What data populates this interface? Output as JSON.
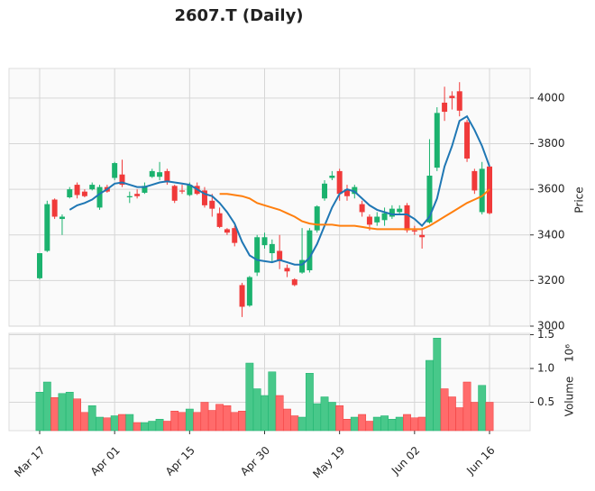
{
  "chart_data": {
    "type": "candlestick",
    "title": "2607.T (Daily)",
    "categories": [
      "Mar 17",
      null,
      null,
      null,
      null,
      null,
      null,
      null,
      null,
      null,
      "Apr 01",
      null,
      null,
      null,
      null,
      null,
      null,
      null,
      null,
      null,
      "Apr 15",
      null,
      null,
      null,
      null,
      null,
      null,
      null,
      null,
      null,
      "Apr 30",
      null,
      null,
      null,
      null,
      null,
      null,
      null,
      null,
      null,
      "May 19",
      null,
      null,
      null,
      null,
      null,
      null,
      null,
      null,
      null,
      "Jun 02",
      null,
      null,
      null,
      null,
      null,
      null,
      null,
      null,
      null,
      "Jun 16"
    ],
    "open": [
      3210,
      3330,
      3555,
      3470,
      3565,
      3620,
      3590,
      3600,
      3520,
      3610,
      3650,
      3665,
      3565,
      3580,
      3585,
      3655,
      3655,
      3680,
      3615,
      3595,
      3575,
      3615,
      3595,
      3550,
      3495,
      3425,
      3430,
      3180,
      3090,
      3235,
      3355,
      3320,
      3330,
      3255,
      3205,
      3235,
      3245,
      3420,
      3560,
      3650,
      3680,
      3600,
      3580,
      3535,
      3480,
      3455,
      3465,
      3480,
      3500,
      3530,
      3420,
      3400,
      3455,
      3695,
      3980,
      4010,
      4030,
      3895,
      3680,
      3500,
      3700
    ],
    "high": [
      3320,
      3550,
      3560,
      3490,
      3610,
      3630,
      3600,
      3630,
      3620,
      3620,
      3720,
      3730,
      3590,
      3600,
      3630,
      3690,
      3720,
      3690,
      3620,
      3620,
      3630,
      3630,
      3610,
      3580,
      3520,
      3430,
      3440,
      3190,
      3220,
      3400,
      3410,
      3380,
      3400,
      3270,
      3210,
      3430,
      3430,
      3530,
      3640,
      3680,
      3690,
      3620,
      3620,
      3550,
      3490,
      3500,
      3520,
      3530,
      3530,
      3540,
      3440,
      3430,
      3820,
      3960,
      4050,
      4030,
      4070,
      3905,
      3690,
      3720,
      3705
    ],
    "low": [
      3205,
      3325,
      3470,
      3400,
      3560,
      3560,
      3565,
      3595,
      3510,
      3585,
      3640,
      3610,
      3540,
      3560,
      3580,
      3650,
      3640,
      3620,
      3540,
      3580,
      3570,
      3575,
      3520,
      3480,
      3430,
      3400,
      3350,
      3040,
      3085,
      3220,
      3340,
      3280,
      3250,
      3215,
      3175,
      3230,
      3235,
      3410,
      3550,
      3640,
      3550,
      3550,
      3560,
      3480,
      3420,
      3440,
      3440,
      3470,
      3490,
      3410,
      3400,
      3340,
      3450,
      3680,
      3900,
      3950,
      3920,
      3720,
      3580,
      3490,
      3490
    ],
    "close": [
      3320,
      3535,
      3480,
      3480,
      3600,
      3575,
      3570,
      3620,
      3610,
      3590,
      3715,
      3620,
      3570,
      3570,
      3615,
      3680,
      3675,
      3630,
      3550,
      3590,
      3620,
      3580,
      3530,
      3515,
      3435,
      3410,
      3365,
      3085,
      3215,
      3390,
      3390,
      3360,
      3285,
      3240,
      3180,
      3290,
      3420,
      3525,
      3625,
      3660,
      3580,
      3570,
      3610,
      3500,
      3445,
      3480,
      3495,
      3515,
      3515,
      3420,
      3415,
      3390,
      3660,
      3935,
      3940,
      4000,
      3945,
      3735,
      3595,
      3690,
      3495
    ],
    "up_color": "#1bb26e",
    "down_color": "#f03a3a",
    "moving_averages": [
      {
        "color": "#1f77b4",
        "values": [
          null,
          null,
          null,
          null,
          3510,
          3530,
          3540,
          3555,
          3580,
          3600,
          3625,
          3630,
          3620,
          3610,
          3610,
          3620,
          3630,
          3635,
          3630,
          3625,
          3620,
          3600,
          3580,
          3570,
          3540,
          3500,
          3450,
          3370,
          3310,
          3290,
          3285,
          3280,
          3290,
          3280,
          3270,
          3270,
          3300,
          3360,
          3440,
          3520,
          3580,
          3600,
          3590,
          3560,
          3530,
          3510,
          3500,
          3490,
          3490,
          3490,
          3470,
          3440,
          3480,
          3560,
          3700,
          3790,
          3900,
          3920,
          3860,
          3790,
          3700
        ]
      },
      {
        "color": "#ff7f0e",
        "values": [
          null,
          null,
          null,
          null,
          null,
          null,
          null,
          null,
          null,
          null,
          null,
          null,
          null,
          null,
          null,
          null,
          null,
          null,
          null,
          null,
          null,
          null,
          null,
          null,
          3580,
          3580,
          3575,
          3570,
          3560,
          3540,
          3530,
          3520,
          3510,
          3495,
          3480,
          3460,
          3450,
          3445,
          3445,
          3445,
          3440,
          3440,
          3440,
          3435,
          3430,
          3425,
          3425,
          3425,
          3425,
          3425,
          3425,
          3425,
          3440,
          3460,
          3480,
          3500,
          3520,
          3540,
          3555,
          3570,
          3600
        ]
      }
    ],
    "ylim": [
      3000,
      4130
    ],
    "yticks": [
      3000,
      3200,
      3400,
      3600,
      3800,
      4000
    ],
    "ylabel": "Price",
    "grid": true,
    "volume": {
      "values": [
        0.65,
        0.8,
        0.57,
        0.63,
        0.65,
        0.55,
        0.35,
        0.45,
        0.28,
        0.27,
        0.3,
        0.32,
        0.32,
        0.2,
        0.2,
        0.22,
        0.25,
        0.22,
        0.37,
        0.35,
        0.4,
        0.35,
        0.5,
        0.38,
        0.47,
        0.45,
        0.35,
        0.37,
        1.08,
        0.7,
        0.6,
        0.95,
        0.6,
        0.4,
        0.3,
        0.28,
        0.93,
        0.48,
        0.58,
        0.5,
        0.45,
        0.25,
        0.28,
        0.32,
        0.22,
        0.28,
        0.3,
        0.25,
        0.28,
        0.32,
        0.27,
        0.28,
        1.12,
        1.45,
        0.7,
        0.58,
        0.42,
        0.8,
        0.5,
        0.75,
        0.5
      ],
      "up_color": "#48c88a",
      "down_color": "#ff6b6b",
      "ylim": [
        0.08,
        1.52
      ],
      "yticks": [
        0.5,
        {
          "value": 1,
          "label": "1.0"
        },
        1.5
      ],
      "ylabel": "Volume",
      "scale_label": "10⁶"
    }
  }
}
